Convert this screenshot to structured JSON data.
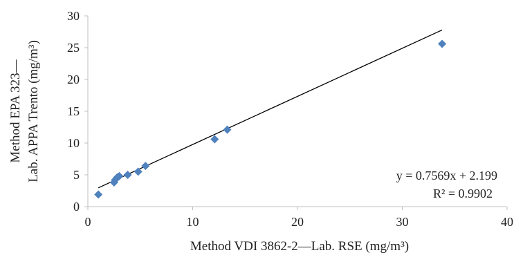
{
  "chart_data": {
    "type": "scatter",
    "title": "",
    "xlabel": "Method VDI 3862-2—Lab. RSE (mg/m³)",
    "ylabel_line1": "Method EPA 323—",
    "ylabel_line2": "Lab. APPA Trento (mg/m³)",
    "xlim": [
      0,
      40
    ],
    "ylim": [
      0,
      30
    ],
    "x_ticks": [
      0,
      10,
      20,
      30,
      40
    ],
    "y_ticks": [
      0,
      5,
      10,
      15,
      20,
      25,
      30
    ],
    "grid": false,
    "legend": "none",
    "marker": "diamond",
    "marker_color": "#4f81bd",
    "trendline_color": "#000000",
    "series": [
      {
        "x": [
          1.0,
          2.5,
          2.6,
          2.8,
          3.0,
          3.8,
          4.8,
          5.5,
          12.1,
          13.3,
          33.8
        ],
        "y": [
          1.9,
          3.8,
          4.2,
          4.6,
          4.8,
          5.0,
          5.5,
          6.4,
          10.6,
          12.1,
          25.6
        ]
      }
    ],
    "trendline": {
      "slope": 0.7569,
      "intercept": 2.199,
      "x_range": [
        1.0,
        33.8
      ]
    },
    "annotations": {
      "equation": "y = 0.7569x + 2.199",
      "r_squared": "R² = 0.9902"
    }
  }
}
